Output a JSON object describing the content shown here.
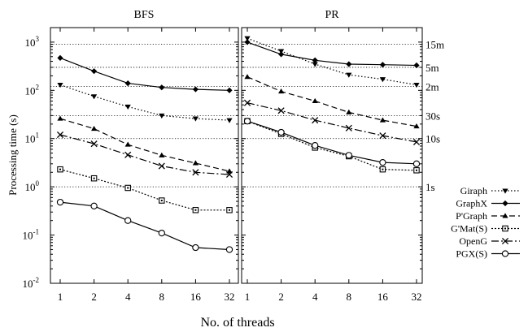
{
  "chart_data": {
    "type": "line",
    "xlabel": "No. of threads",
    "ylabel": "Processing time (s)",
    "x": [
      1,
      2,
      4,
      8,
      16,
      32
    ],
    "x_tick_labels": [
      "1",
      "2",
      "4",
      "8",
      "16",
      "32"
    ],
    "x_scale": "log2",
    "y_scale": "log10",
    "ylim": [
      0.01,
      2000
    ],
    "y_ticks": [
      {
        "base": "10",
        "exp": "-2",
        "value": 0.01
      },
      {
        "base": "10",
        "exp": "-1",
        "value": 0.1
      },
      {
        "base": "10",
        "exp": "0",
        "value": 1
      },
      {
        "base": "10",
        "exp": "1",
        "value": 10
      },
      {
        "base": "10",
        "exp": "2",
        "value": 100
      },
      {
        "base": "10",
        "exp": "3",
        "value": 1000
      }
    ],
    "right_axis_labels": [
      {
        "label": "15m",
        "value": 900
      },
      {
        "label": "5m",
        "value": 300
      },
      {
        "label": "2m",
        "value": 120
      },
      {
        "label": "30s",
        "value": 30
      },
      {
        "label": "10s",
        "value": 10
      },
      {
        "label": "1s",
        "value": 1
      }
    ],
    "grid": "horizontal dotted",
    "legend_position": "right",
    "panels": [
      {
        "title": "BFS",
        "series": [
          {
            "name": "Giraph",
            "values": [
              130,
              75,
              46,
              30,
              26,
              24
            ]
          },
          {
            "name": "GraphX",
            "values": [
              470,
              250,
              140,
              115,
              105,
              100
            ]
          },
          {
            "name": "P'Graph",
            "values": [
              26,
              16,
              7.5,
              4.5,
              3.1,
              2.1
            ]
          },
          {
            "name": "G'Mat(S)",
            "values": [
              2.3,
              1.5,
              0.95,
              0.52,
              0.33,
              0.33
            ]
          },
          {
            "name": "OpenG",
            "values": [
              12,
              7.8,
              4.6,
              2.7,
              2.0,
              1.8
            ]
          },
          {
            "name": "PGX(S)",
            "values": [
              0.48,
              0.4,
              0.2,
              0.11,
              0.055,
              0.05
            ]
          }
        ]
      },
      {
        "title": "PR",
        "series": [
          {
            "name": "Giraph",
            "values": [
              1200,
              650,
              350,
              210,
              170,
              130
            ]
          },
          {
            "name": "GraphX",
            "values": [
              1000,
              560,
              420,
              350,
              340,
              330
            ]
          },
          {
            "name": "P'Graph",
            "values": [
              190,
              95,
              60,
              35,
              24,
              18
            ]
          },
          {
            "name": "G'Mat(S)",
            "values": [
              23,
              12.5,
              6.5,
              4.3,
              2.3,
              2.2
            ]
          },
          {
            "name": "OpenG",
            "values": [
              55,
              38,
              24,
              16.5,
              11.5,
              8.5
            ]
          },
          {
            "name": "PGX(S)",
            "values": [
              23,
              13.5,
              7.2,
              4.5,
              3.2,
              3.0
            ]
          }
        ]
      }
    ],
    "styles": [
      {
        "name": "Giraph",
        "marker": "triangle-down",
        "dash": "1.5 2.5"
      },
      {
        "name": "GraphX",
        "marker": "diamond",
        "dash": ""
      },
      {
        "name": "P'Graph",
        "marker": "triangle-up",
        "dash": "7 4"
      },
      {
        "name": "G'Mat(S)",
        "marker": "square-open",
        "dash": "2 2"
      },
      {
        "name": "OpenG",
        "marker": "cross",
        "dash": "9 3 2 3"
      },
      {
        "name": "PGX(S)",
        "marker": "circle-open",
        "dash": ""
      }
    ]
  }
}
